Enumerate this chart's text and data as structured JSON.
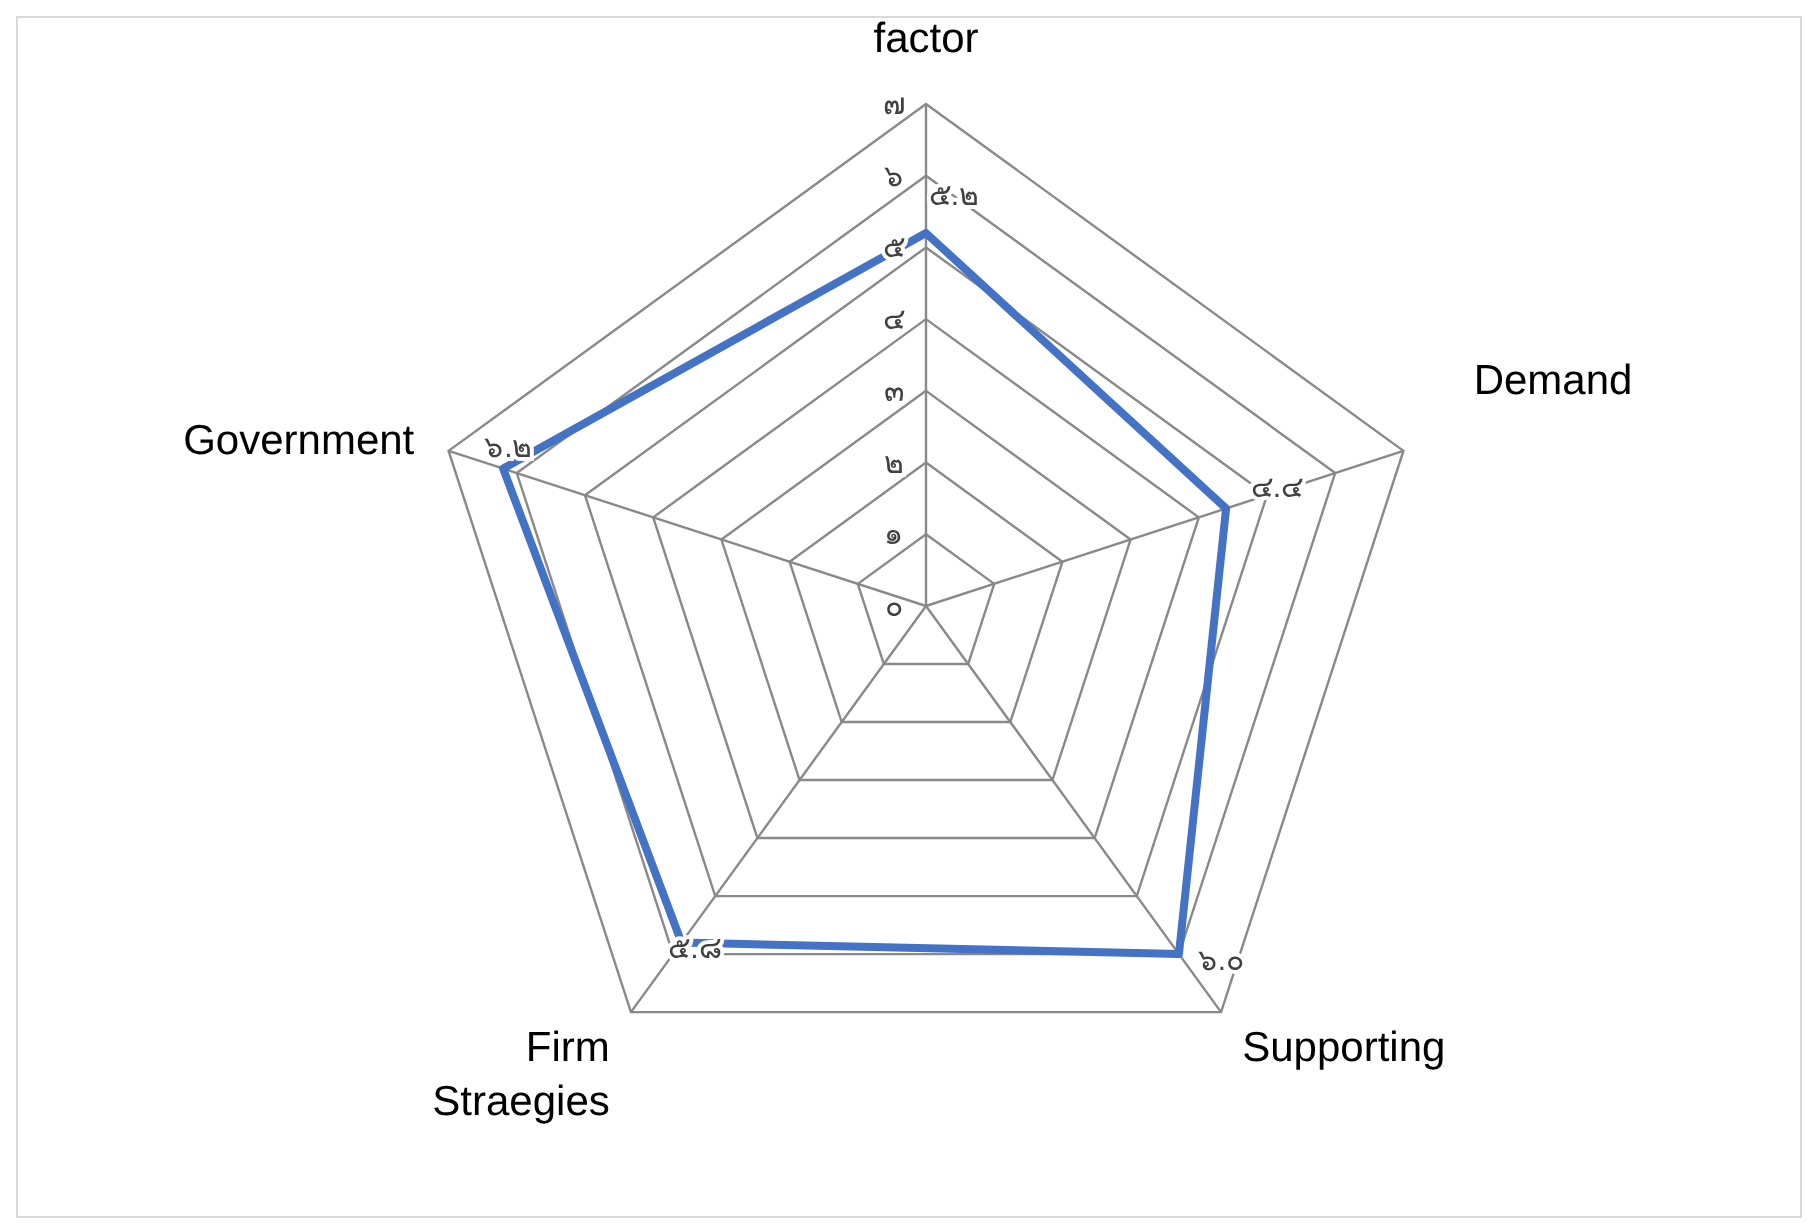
{
  "chart_data": {
    "type": "radar",
    "categories": [
      "factor",
      "Demand",
      "Supporting",
      "Firm Straegies",
      "Government"
    ],
    "series": [
      {
        "color": "#4472c4",
        "values": [
          5.2,
          4.4,
          6.0,
          5.8,
          6.2
        ],
        "value_labels": [
          "๕.๒",
          "๔.๔",
          "๖.๐",
          "๕.๘",
          "๖.๒"
        ]
      }
    ],
    "ylim": [
      0,
      7
    ],
    "yticks": [
      {
        "value": 0,
        "label": "๐"
      },
      {
        "value": 1,
        "label": "๑"
      },
      {
        "value": 2,
        "label": "๒"
      },
      {
        "value": 3,
        "label": "๓"
      },
      {
        "value": 4,
        "label": "๔"
      },
      {
        "value": 5,
        "label": "๕"
      },
      {
        "value": 6,
        "label": "๖"
      },
      {
        "value": 7,
        "label": "๗"
      }
    ],
    "grid": true,
    "marker": "none",
    "line_style": "solid"
  }
}
